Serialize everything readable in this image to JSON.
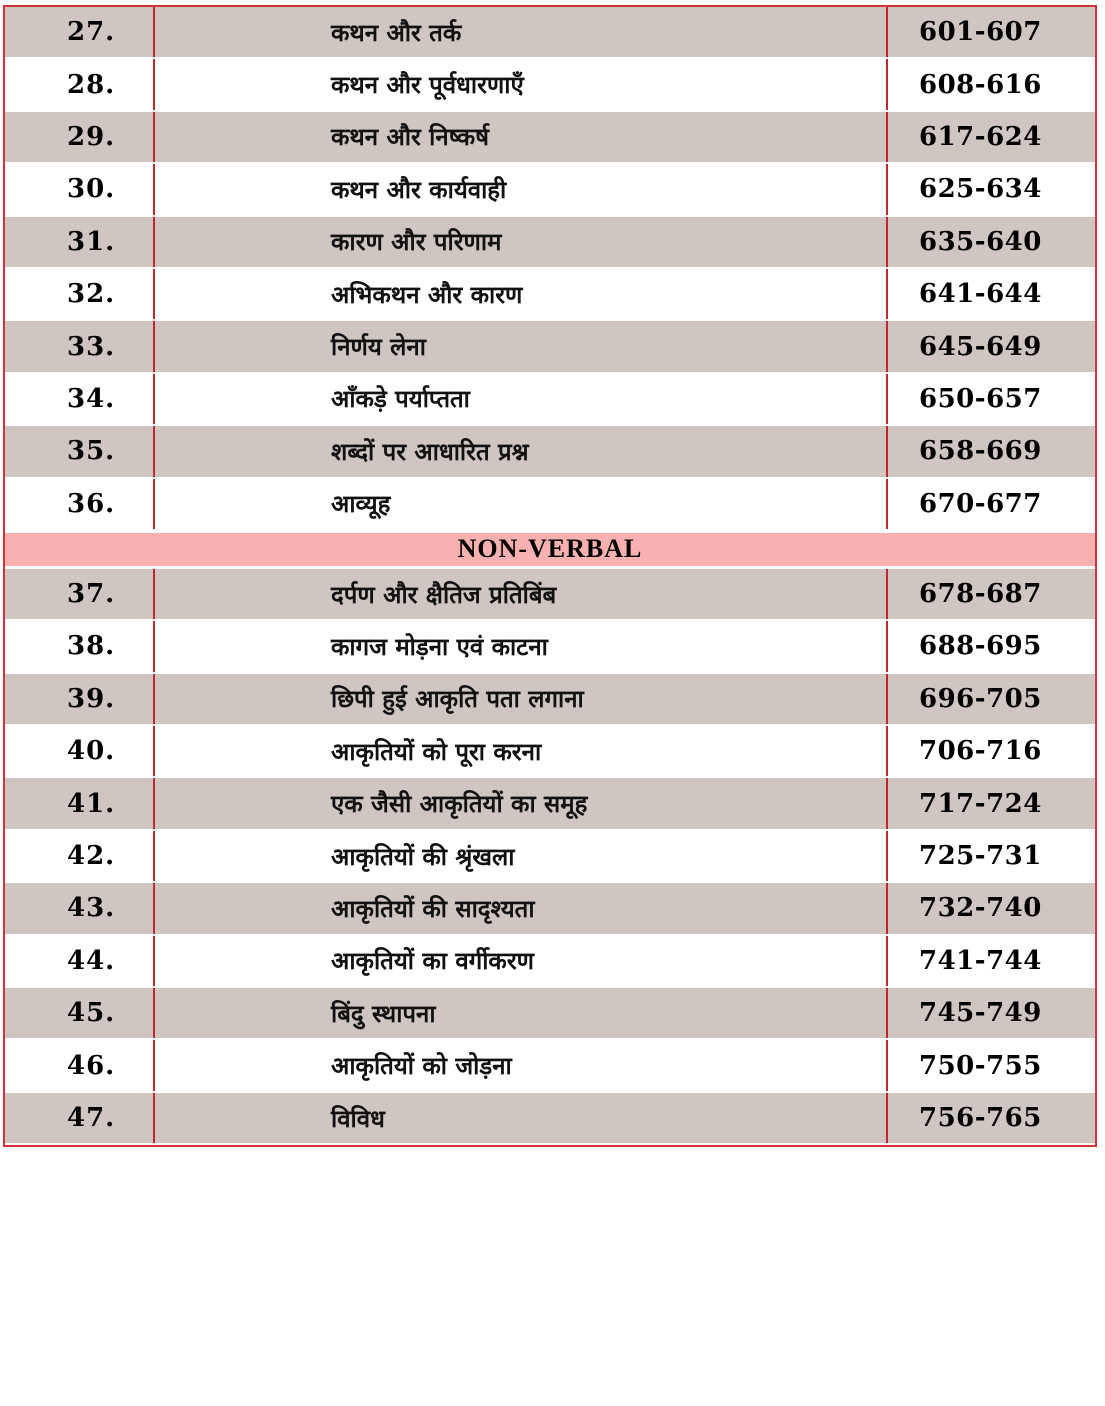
{
  "rows_verbal": [
    {
      "no": "27.",
      "topic": "कथन और तर्क",
      "pages": "601-607"
    },
    {
      "no": "28.",
      "topic": "कथन और पूर्वधारणाएँ",
      "pages": "608-616"
    },
    {
      "no": "29.",
      "topic": "कथन और निष्कर्ष",
      "pages": "617-624"
    },
    {
      "no": "30.",
      "topic": "कथन और कार्यवाही",
      "pages": "625-634"
    },
    {
      "no": "31.",
      "topic": "कारण और परिणाम",
      "pages": "635-640"
    },
    {
      "no": "32.",
      "topic": "अभिकथन और कारण",
      "pages": "641-644"
    },
    {
      "no": "33.",
      "topic": "निर्णय लेना",
      "pages": "645-649"
    },
    {
      "no": "34.",
      "topic": "आँकड़े पर्याप्तता",
      "pages": "650-657"
    },
    {
      "no": "35.",
      "topic": "शब्दों पर आधारित प्रश्न",
      "pages": "658-669"
    },
    {
      "no": "36.",
      "topic": "आव्यूह",
      "pages": "670-677"
    }
  ],
  "section_heading": "NON-VERBAL",
  "rows_nonverbal": [
    {
      "no": "37.",
      "topic": "दर्पण और क्षैतिज प्रतिबिंब",
      "pages": "678-687"
    },
    {
      "no": "38.",
      "topic": "कागज मोड़ना एवं काटना",
      "pages": "688-695"
    },
    {
      "no": "39.",
      "topic": "छिपी हुई आकृति पता लगाना",
      "pages": "696-705"
    },
    {
      "no": "40.",
      "topic": "आकृतियों को पूरा करना",
      "pages": "706-716"
    },
    {
      "no": "41.",
      "topic": "एक जैसी आकृतियों का समूह",
      "pages": "717-724"
    },
    {
      "no": "42.",
      "topic": "आकृतियों की श्रृंखला",
      "pages": "725-731"
    },
    {
      "no": "43.",
      "topic": "आकृतियों की सादृश्यता",
      "pages": "732-740"
    },
    {
      "no": "44.",
      "topic": "आकृतियों का वर्गीकरण",
      "pages": "741-744"
    },
    {
      "no": "45.",
      "topic": "बिंदु स्थापना",
      "pages": "745-749"
    },
    {
      "no": "46.",
      "topic": "आकृतियों को जोड़ना",
      "pages": "750-755"
    },
    {
      "no": "47.",
      "topic": "विविध",
      "pages": "756-765"
    }
  ],
  "colors": {
    "border": "#d0343a",
    "shade": "#cfc6c2",
    "section": "#f9b0b0"
  }
}
